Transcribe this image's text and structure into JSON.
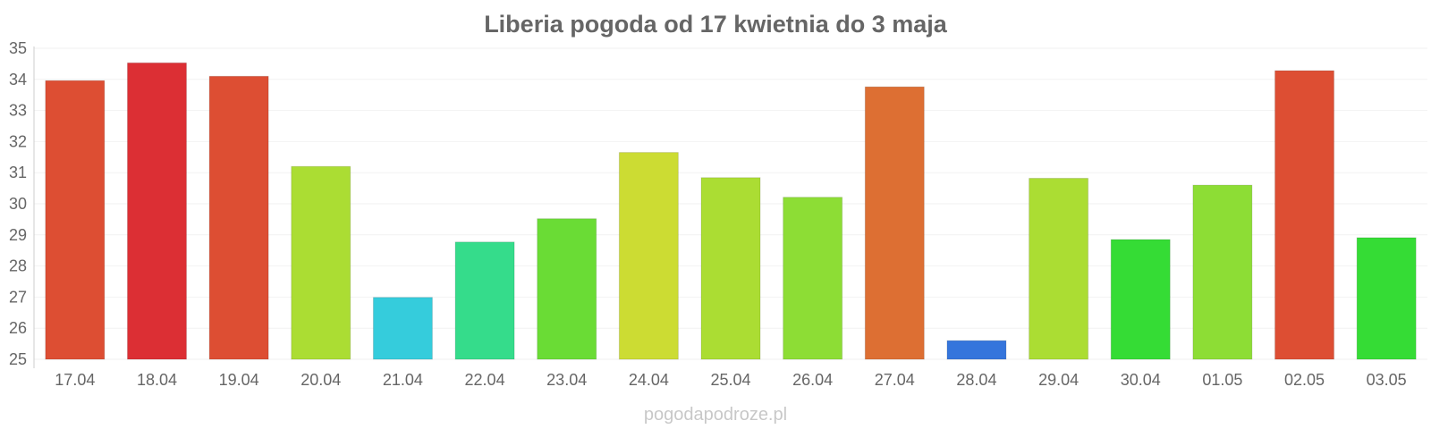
{
  "chart_data": {
    "type": "bar",
    "title": "Liberia pogoda od 17 kwietnia do 3 maja",
    "xlabel": "",
    "ylabel": "",
    "ylim": [
      25,
      35
    ],
    "yticks": [
      "25",
      "26",
      "27",
      "28",
      "29",
      "30",
      "31",
      "32",
      "33",
      "34",
      "35"
    ],
    "grid": true,
    "legend": "none",
    "categories": [
      "17.04",
      "18.04",
      "19.04",
      "20.04",
      "21.04",
      "22.04",
      "23.04",
      "24.04",
      "25.04",
      "26.04",
      "27.04",
      "28.04",
      "29.04",
      "30.04",
      "01.05",
      "02.05",
      "03.05"
    ],
    "values": [
      33.96,
      34.53,
      34.1,
      31.2,
      26.99,
      28.77,
      29.52,
      31.65,
      30.84,
      30.21,
      33.76,
      25.6,
      30.82,
      28.85,
      30.6,
      34.28,
      28.91
    ],
    "colors": [
      "#dd4e33",
      "#dc2f34",
      "#dd4e33",
      "#abdd33",
      "#35ccdc",
      "#35dc8b",
      "#6adc35",
      "#ccdc33",
      "#abdd33",
      "#8ddd35",
      "#dd6f33",
      "#3575dc",
      "#abdd33",
      "#35dc35",
      "#8ddd35",
      "#dd4e33",
      "#35dc35"
    ]
  },
  "footer": {
    "watermark": "pogodapodroze.pl"
  }
}
